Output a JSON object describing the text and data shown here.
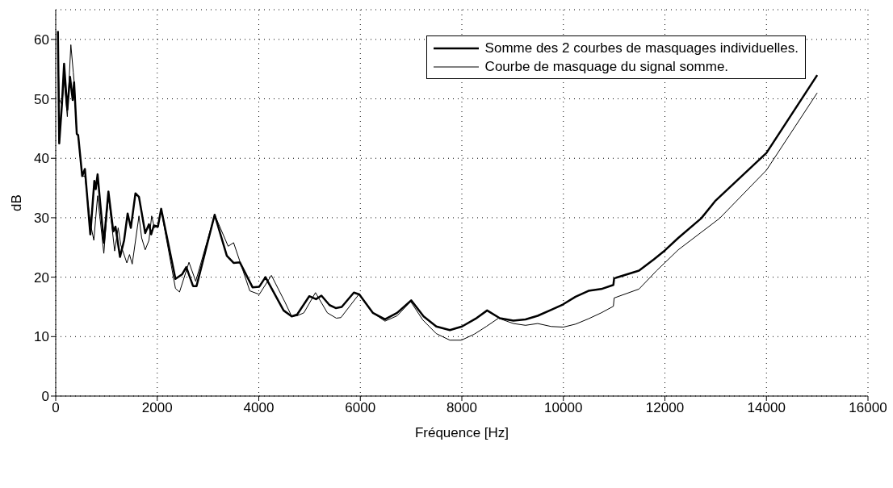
{
  "chart_data": {
    "type": "line",
    "xlabel": "Fréquence [Hz]",
    "ylabel": "dB",
    "xlim": [
      0,
      16000
    ],
    "xticks": [
      0,
      2000,
      4000,
      6000,
      8000,
      10000,
      12000,
      14000,
      16000
    ],
    "ylim": [
      0,
      65
    ],
    "yticks": [
      0,
      10,
      20,
      30,
      40,
      50,
      60
    ],
    "grid": true,
    "legend": "top right",
    "marker": "none",
    "line_style": "solid",
    "series": [
      {
        "name": "Somme des 2 courbes de masquages individuelles.",
        "color": "#000000",
        "x": [
          43,
          69,
          122,
          165,
          229,
          282,
          335,
          362,
          415,
          442,
          522,
          575,
          682,
          761,
          788,
          825,
          948,
          1038,
          1134,
          1177,
          1267,
          1347,
          1417,
          1480,
          1571,
          1640,
          1763,
          1837,
          1880,
          1933,
          2013,
          2077,
          2359,
          2492,
          2572,
          2705,
          2774,
          3131,
          3371,
          3504,
          3626,
          3877,
          4010,
          4132,
          4489,
          4649,
          4755,
          4994,
          5128,
          5234,
          5394,
          5516,
          5634,
          5873,
          5980,
          6246,
          6486,
          6725,
          7002,
          7247,
          7497,
          7764,
          8003,
          8270,
          8498,
          8749,
          9015,
          9254,
          9494,
          9760,
          9989,
          10240,
          10495,
          10746,
          10985,
          11000,
          11490,
          11784,
          12000,
          12263,
          12716,
          13000,
          14000,
          15000
        ],
        "values": [
          61.4,
          42.5,
          49,
          55.9,
          48.2,
          53.7,
          49.8,
          52.8,
          44.1,
          43.9,
          37,
          38.2,
          27.2,
          36.2,
          34.8,
          37.3,
          25.8,
          34.4,
          27.7,
          28.5,
          23.4,
          26.2,
          30.7,
          28.3,
          34.1,
          33.5,
          27.4,
          28.9,
          27.2,
          28.7,
          28.5,
          31.5,
          19.7,
          20.5,
          21.7,
          18.5,
          18.5,
          30.5,
          23.6,
          22.4,
          22.5,
          18.3,
          18.4,
          20,
          14.4,
          13.4,
          13.7,
          16.8,
          16.3,
          16.9,
          15.3,
          14.8,
          15,
          17.4,
          17.1,
          14,
          12.9,
          14,
          16.1,
          13.4,
          11.7,
          11.1,
          11.7,
          13,
          14.4,
          13.1,
          12.7,
          12.9,
          13.5,
          14.5,
          15.4,
          16.7,
          17.7,
          18,
          18.7,
          19.8,
          21.1,
          23,
          24.5,
          26.6,
          29.9,
          32.9,
          40.9,
          54
        ]
      },
      {
        "name": "Courbe de masquage du signal somme.",
        "color": "#000000",
        "x": [
          43,
          69,
          122,
          165,
          229,
          298,
          346,
          362,
          415,
          442,
          522,
          575,
          682,
          751,
          825,
          948,
          1038,
          1161,
          1230,
          1283,
          1401,
          1454,
          1507,
          1640,
          1693,
          1763,
          1837,
          1890,
          1944,
          2013,
          2077,
          2359,
          2439,
          2625,
          2758,
          3131,
          3397,
          3504,
          3823,
          4010,
          4249,
          4516,
          4649,
          4755,
          4888,
          5117,
          5351,
          5527,
          5618,
          5980,
          6246,
          6486,
          6725,
          6992,
          7231,
          7497,
          7764,
          7992,
          8243,
          8482,
          8722,
          9015,
          9254,
          9494,
          9760,
          10000,
          10240,
          10495,
          10746,
          10985,
          11000,
          11490,
          11837,
          12263,
          13078,
          14000,
          15000
        ],
        "values": [
          58,
          50,
          49,
          53,
          47,
          59.1,
          54.5,
          53,
          44,
          43.9,
          37,
          37,
          29.1,
          26.2,
          33.7,
          24,
          33.8,
          24.4,
          28.3,
          25.4,
          22.4,
          23.8,
          22.2,
          30.3,
          26.6,
          24.6,
          26.2,
          30.3,
          28.3,
          28.7,
          31.3,
          18.1,
          17.5,
          22.5,
          19.3,
          30.5,
          25.2,
          25.8,
          17.7,
          17.1,
          20.3,
          15.8,
          13.4,
          13.5,
          14,
          17.4,
          14,
          13.1,
          13.2,
          17.2,
          14,
          12.6,
          13.5,
          15.9,
          12.8,
          10.5,
          9.4,
          9.4,
          10.4,
          11.7,
          13.1,
          12.2,
          11.9,
          12.2,
          11.7,
          11.6,
          12.1,
          13,
          14,
          15.1,
          16.5,
          18,
          21.1,
          24.6,
          29.9,
          38,
          51
        ]
      }
    ]
  }
}
